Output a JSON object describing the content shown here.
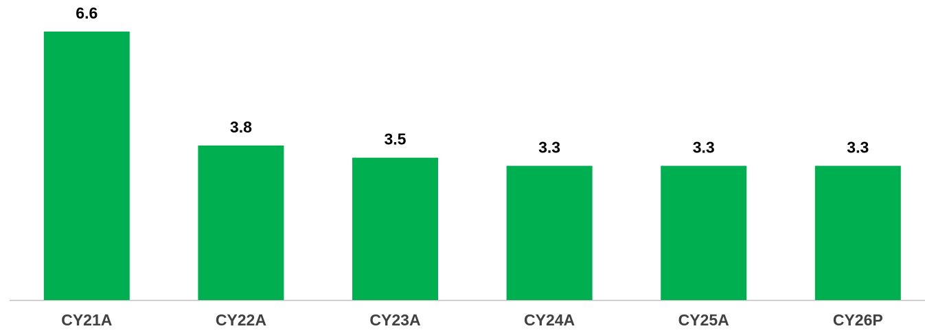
{
  "chart_data": {
    "type": "bar",
    "categories": [
      "CY21A",
      "CY22A",
      "CY23A",
      "CY24A",
      "CY25A",
      "CY26P"
    ],
    "values": [
      6.6,
      3.8,
      3.5,
      3.3,
      3.3,
      3.3
    ],
    "color": "#00b050"
  }
}
